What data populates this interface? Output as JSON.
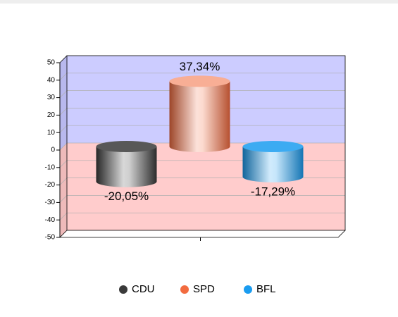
{
  "chart_data": {
    "type": "bar",
    "categories": [
      null
    ],
    "series": [
      {
        "name": "CDU",
        "color": "#3a3a3a",
        "values": [
          -20.05
        ],
        "value_labels": [
          "-20,05%"
        ]
      },
      {
        "name": "SPD",
        "color": "#f26b3f",
        "values": [
          37.34
        ],
        "value_labels": [
          "37,34%"
        ]
      },
      {
        "name": "BFL",
        "color": "#1a9cf0",
        "values": [
          -17.29
        ],
        "value_labels": [
          "-17,29%"
        ]
      }
    ],
    "ylim": [
      -50,
      50
    ],
    "yticks": [
      -50,
      -40,
      -30,
      -20,
      -10,
      0,
      10,
      20,
      30,
      40,
      50
    ],
    "grid": true,
    "legend": "bottom"
  }
}
